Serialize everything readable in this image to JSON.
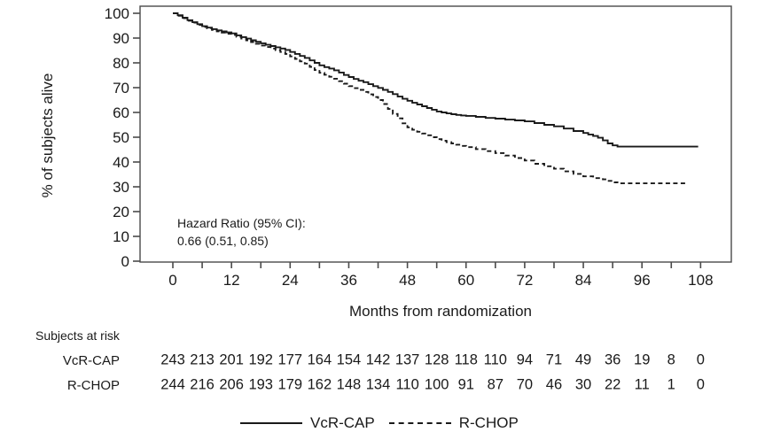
{
  "chart_data": {
    "type": "line",
    "subtype": "kaplan-meier-step-curves",
    "title": "",
    "xlabel": "Months from randomization",
    "ylabel": "% of subjects alive",
    "xlim": [
      0,
      114
    ],
    "ylim": [
      0,
      100
    ],
    "grid": false,
    "xticks_major": [
      0,
      12,
      24,
      36,
      48,
      60,
      72,
      84,
      96,
      108
    ],
    "xticks_minor": [
      6,
      18,
      30,
      42,
      54,
      66,
      78,
      90,
      102
    ],
    "yticks": [
      0,
      10,
      20,
      30,
      40,
      50,
      60,
      70,
      80,
      90,
      100
    ],
    "annotation": {
      "line1": "Hazard Ratio (95% CI):",
      "line2": "0.66 (0.51, 0.85)"
    },
    "series": [
      {
        "name": "VcR-CAP",
        "style": "solid",
        "points": [
          [
            0,
            100
          ],
          [
            1,
            99.2
          ],
          [
            2,
            98.2
          ],
          [
            3,
            97.2
          ],
          [
            4,
            96.4
          ],
          [
            5,
            95.6
          ],
          [
            6,
            94.8
          ],
          [
            7,
            94.2
          ],
          [
            8,
            93.6
          ],
          [
            9,
            93.1
          ],
          [
            10,
            92.7
          ],
          [
            11,
            92.3
          ],
          [
            12,
            91.9
          ],
          [
            13,
            91.1
          ],
          [
            14,
            90.4
          ],
          [
            15,
            89.8
          ],
          [
            16,
            89.1
          ],
          [
            17,
            88.5
          ],
          [
            18,
            87.9
          ],
          [
            19,
            87.3
          ],
          [
            20,
            86.8
          ],
          [
            21,
            86.3
          ],
          [
            22,
            85.8
          ],
          [
            23,
            85.2
          ],
          [
            24,
            84.4
          ],
          [
            25,
            83.6
          ],
          [
            26,
            82.8
          ],
          [
            27,
            82
          ],
          [
            28,
            81
          ],
          [
            29,
            80
          ],
          [
            30,
            79
          ],
          [
            31,
            78.3
          ],
          [
            32,
            77.7
          ],
          [
            33,
            77
          ],
          [
            34,
            76.1
          ],
          [
            35,
            75.1
          ],
          [
            36,
            74.3
          ],
          [
            37,
            73.5
          ],
          [
            38,
            72.8
          ],
          [
            39,
            72.2
          ],
          [
            40,
            71.4
          ],
          [
            41,
            70.6
          ],
          [
            42,
            69.9
          ],
          [
            43,
            69.1
          ],
          [
            44,
            68.3
          ],
          [
            45,
            67.4
          ],
          [
            46,
            66.4
          ],
          [
            47,
            65.5
          ],
          [
            48,
            64.7
          ],
          [
            49,
            63.9
          ],
          [
            50,
            63.2
          ],
          [
            51,
            62.5
          ],
          [
            52,
            61.8
          ],
          [
            53,
            61.1
          ],
          [
            54,
            60.4
          ],
          [
            55,
            60
          ],
          [
            56,
            59.6
          ],
          [
            57,
            59.3
          ],
          [
            58,
            59
          ],
          [
            59,
            58.8
          ],
          [
            60,
            58.6
          ],
          [
            62,
            58.2
          ],
          [
            64,
            57.8
          ],
          [
            66,
            57.5
          ],
          [
            68,
            57.1
          ],
          [
            70,
            56.8
          ],
          [
            72,
            56.4
          ],
          [
            74,
            55.7
          ],
          [
            76,
            55
          ],
          [
            78,
            54.4
          ],
          [
            80,
            53.5
          ],
          [
            82,
            52.5
          ],
          [
            84,
            51.7
          ],
          [
            85,
            51.1
          ],
          [
            86,
            50.5
          ],
          [
            87,
            49.8
          ],
          [
            88,
            48.7
          ],
          [
            89,
            47.5
          ],
          [
            90,
            46.7
          ],
          [
            91,
            46.2
          ],
          [
            107.5,
            46.2
          ]
        ]
      },
      {
        "name": "R-CHOP",
        "style": "dashed",
        "points": [
          [
            0,
            100
          ],
          [
            1,
            99
          ],
          [
            2,
            98
          ],
          [
            3,
            97
          ],
          [
            4,
            96.2
          ],
          [
            5,
            95.3
          ],
          [
            6,
            94.5
          ],
          [
            7,
            93.9
          ],
          [
            8,
            93.3
          ],
          [
            9,
            92.7
          ],
          [
            10,
            92.2
          ],
          [
            11,
            91.7
          ],
          [
            12,
            91.3
          ],
          [
            13,
            90.5
          ],
          [
            14,
            89.8
          ],
          [
            15,
            89.1
          ],
          [
            16,
            88.4
          ],
          [
            17,
            87.7
          ],
          [
            18,
            87
          ],
          [
            19,
            86.4
          ],
          [
            20,
            85.8
          ],
          [
            21,
            85.1
          ],
          [
            22,
            84.4
          ],
          [
            23,
            83.6
          ],
          [
            24,
            82.6
          ],
          [
            25,
            81.6
          ],
          [
            26,
            80.6
          ],
          [
            27,
            79.7
          ],
          [
            28,
            78.4
          ],
          [
            29,
            77.1
          ],
          [
            30,
            76
          ],
          [
            31,
            75.2
          ],
          [
            32,
            74.4
          ],
          [
            33,
            73.6
          ],
          [
            34,
            72.6
          ],
          [
            35,
            71.6
          ],
          [
            36,
            70.6
          ],
          [
            37,
            69.8
          ],
          [
            38,
            69.1
          ],
          [
            39,
            68.3
          ],
          [
            40,
            67.3
          ],
          [
            41,
            66.2
          ],
          [
            42,
            65
          ],
          [
            43,
            63.4
          ],
          [
            44,
            61.4
          ],
          [
            45,
            59.4
          ],
          [
            46,
            57.6
          ],
          [
            47,
            55.6
          ],
          [
            48,
            54
          ],
          [
            49,
            53
          ],
          [
            50,
            52.2
          ],
          [
            51,
            51.5
          ],
          [
            52,
            50.8
          ],
          [
            53,
            50
          ],
          [
            54,
            49.2
          ],
          [
            55,
            48.6
          ],
          [
            56,
            48
          ],
          [
            57,
            47.5
          ],
          [
            58,
            47
          ],
          [
            59,
            46.5
          ],
          [
            60,
            46
          ],
          [
            62,
            45.2
          ],
          [
            64,
            44.4
          ],
          [
            66,
            43.6
          ],
          [
            68,
            42.6
          ],
          [
            70,
            41.6
          ],
          [
            72,
            40.6
          ],
          [
            74,
            39.3
          ],
          [
            76,
            38.3
          ],
          [
            78,
            37.3
          ],
          [
            80,
            36.2
          ],
          [
            82,
            35.2
          ],
          [
            84,
            34.2
          ],
          [
            86,
            33.5
          ],
          [
            88,
            33
          ],
          [
            89,
            32.4
          ],
          [
            90,
            31.8
          ],
          [
            91,
            31.4
          ],
          [
            105,
            31.4
          ]
        ]
      }
    ],
    "legend_position": "bottom-center"
  },
  "at_risk": {
    "heading": "Subjects at risk",
    "months": [
      0,
      6,
      12,
      18,
      24,
      30,
      36,
      42,
      48,
      54,
      60,
      66,
      72,
      78,
      84,
      90,
      96,
      102,
      108
    ],
    "rows": [
      {
        "label": "VcR-CAP",
        "counts": [
          243,
          213,
          201,
          192,
          177,
          164,
          154,
          142,
          137,
          128,
          118,
          110,
          94,
          71,
          49,
          36,
          19,
          8,
          0
        ]
      },
      {
        "label": "R-CHOP",
        "counts": [
          244,
          216,
          206,
          193,
          179,
          162,
          148,
          134,
          110,
          100,
          91,
          87,
          70,
          46,
          30,
          22,
          11,
          1,
          0
        ]
      }
    ]
  },
  "legend": {
    "items": [
      {
        "label": "VcR-CAP",
        "style": "solid"
      },
      {
        "label": "R-CHOP",
        "style": "dashed"
      }
    ]
  },
  "colors": {
    "line": "#1a1a1a",
    "text": "#1a1a1a",
    "frame": "#4a4a4a"
  }
}
